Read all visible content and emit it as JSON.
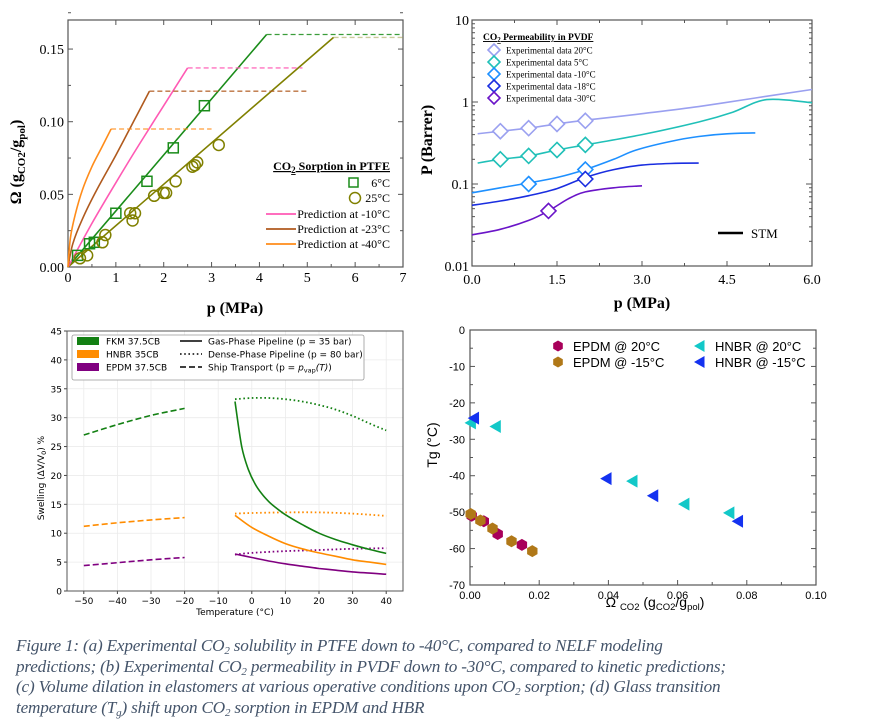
{
  "caption": {
    "line1_a": "Figure 1: (a) Experimental CO",
    "line1_b": " solubility in PTFE down to -40°C, compared to NELF modeling",
    "line2_a": "predictions; (b) Experimental CO",
    "line2_b": " permeability in PVDF down to -30°C, compared to kinetic predictions;",
    "line3_a": "(c) Volume dilation in elastomers at various operative conditions upon CO",
    "line3_b": " sorption; (d) Glass transition",
    "line4_a": "temperature (T",
    "line4_b": ") shift upon CO",
    "line4_c": " sorption in EPDM and HBR",
    "sub2": "2",
    "subg": "g"
  },
  "chart_data": [
    {
      "id": "a",
      "type": "line",
      "title": "CO2 Sorption in PTFE",
      "xlabel": "p (MPa)",
      "ylabel": "Ω (gCO2/gpol)",
      "xlim": [
        0,
        7
      ],
      "ylim": [
        0,
        0.17
      ],
      "xticks": [
        0,
        1,
        2,
        3,
        4,
        5,
        6,
        7
      ],
      "yticks": [
        0.0,
        0.05,
        0.1,
        0.15
      ],
      "ytick_labels": [
        "0.00",
        "0.05",
        "0.10",
        "0.15"
      ],
      "legend_placement": "bottom-right",
      "legend_title": "CO2 Sorption in PTFE",
      "scatter": [
        {
          "name": "6°C",
          "marker": "square",
          "color": "#1a8c1a",
          "x": [
            0.2,
            0.45,
            0.55,
            1.0,
            1.65,
            2.2,
            2.85
          ],
          "y": [
            0.008,
            0.016,
            0.017,
            0.037,
            0.059,
            0.082,
            0.111
          ]
        },
        {
          "name": "25°C",
          "marker": "circle",
          "color": "#808000",
          "x": [
            0.25,
            0.4,
            0.72,
            0.78,
            1.3,
            1.35,
            1.4,
            1.8,
            2.0,
            2.05,
            2.25,
            2.6,
            2.65,
            2.7,
            3.15
          ],
          "y": [
            0.006,
            0.008,
            0.017,
            0.022,
            0.037,
            0.032,
            0.037,
            0.049,
            0.051,
            0.051,
            0.059,
            0.069,
            0.07,
            0.072,
            0.084
          ]
        }
      ],
      "series": [
        {
          "name": "6°C fit",
          "color": "#1a8c1a",
          "x": [
            0,
            4.15
          ],
          "y": [
            0,
            0.16
          ],
          "plateau_to": 7
        },
        {
          "name": "25°C fit",
          "color": "#808000",
          "x": [
            0,
            5.55
          ],
          "y": [
            0,
            0.158
          ],
          "plateau_to": 7,
          "plateau_color": "#c2c28a"
        },
        {
          "name": "Prediction at -10°C",
          "color": "#ff5ab4",
          "x": [
            0,
            0.5,
            1.0,
            1.5,
            2.0,
            2.5
          ],
          "y": [
            0,
            0.03,
            0.058,
            0.085,
            0.111,
            0.137
          ],
          "plateau_to": 4.9
        },
        {
          "name": "Prediction at -23°C",
          "color": "#b05a1e",
          "x": [
            0,
            0.1,
            0.3,
            0.6,
            1.0,
            1.4,
            1.7
          ],
          "y": [
            0,
            0.016,
            0.033,
            0.053,
            0.077,
            0.102,
            0.121
          ],
          "plateau_to": 5.0
        },
        {
          "name": "Prediction at -40°C",
          "color": "#ff8c1a",
          "x": [
            0,
            0.05,
            0.15,
            0.3,
            0.5,
            0.7,
            0.9
          ],
          "y": [
            0,
            0.02,
            0.036,
            0.053,
            0.069,
            0.082,
            0.095
          ],
          "plateau_to": 3.0
        }
      ]
    },
    {
      "id": "b",
      "type": "line",
      "title": "CO2 Permeability in PVDF",
      "xlabel": "p (MPa)",
      "ylabel": "P (Barrer)",
      "xscale": "linear",
      "yscale": "log",
      "xlim": [
        0,
        6
      ],
      "ylim": [
        0.01,
        10
      ],
      "xticks": [
        0.0,
        1.5,
        3.0,
        4.5,
        6.0
      ],
      "xtick_labels": [
        "0.0",
        "1.5",
        "3.0",
        "4.5",
        "6.0"
      ],
      "yticks": [
        0.01,
        0.1,
        1,
        10
      ],
      "ytick_labels": [
        "0.01",
        "0.1",
        "1",
        "10"
      ],
      "legend_placement": "top-left",
      "legend_title": "CO2 Permeability in PVDF",
      "model_label": "STM",
      "series": [
        {
          "name": "Experimental data 20°C",
          "color": "#9aa0f0",
          "points_x": [
            0.5,
            1.0,
            1.5,
            2.0
          ],
          "points_y": [
            0.44,
            0.48,
            0.54,
            0.59
          ],
          "x": [
            0.1,
            0.5,
            1.0,
            1.5,
            2.0,
            3.0,
            4.0,
            5.0,
            6.0
          ],
          "y": [
            0.41,
            0.44,
            0.48,
            0.54,
            0.6,
            0.72,
            0.88,
            1.12,
            1.42
          ]
        },
        {
          "name": "Experimental data 5°C",
          "color": "#20c0b8",
          "points_x": [
            0.5,
            1.0,
            1.5,
            2.0
          ],
          "points_y": [
            0.2,
            0.22,
            0.26,
            0.3
          ],
          "x": [
            0.1,
            0.5,
            1.0,
            1.5,
            2.0,
            3.0,
            4.0,
            4.6,
            5.2,
            6.0
          ],
          "y": [
            0.18,
            0.2,
            0.22,
            0.26,
            0.3,
            0.4,
            0.57,
            0.75,
            1.07,
            0.98
          ]
        },
        {
          "name": "Experimental data -10°C",
          "color": "#1e90ff",
          "points_x": [
            1.0,
            2.0
          ],
          "points_y": [
            0.1,
            0.15
          ],
          "x": [
            0.0,
            0.5,
            1.0,
            1.5,
            2.0,
            2.5,
            2.9,
            3.5,
            4.0,
            4.5,
            5.0
          ],
          "y": [
            0.078,
            0.09,
            0.103,
            0.12,
            0.15,
            0.2,
            0.26,
            0.33,
            0.38,
            0.41,
            0.42
          ]
        },
        {
          "name": "Experimental data -18°C",
          "color": "#1a2ee0",
          "points_x": [
            2.0
          ],
          "points_y": [
            0.115
          ],
          "x": [
            0.0,
            0.5,
            1.0,
            1.5,
            2.0,
            2.5,
            3.0,
            3.5,
            4.0
          ],
          "y": [
            0.055,
            0.062,
            0.072,
            0.088,
            0.12,
            0.15,
            0.17,
            0.178,
            0.18
          ]
        },
        {
          "name": "Experimental data -30°C",
          "color": "#6a14c8",
          "points_x": [
            1.35
          ],
          "points_y": [
            0.047
          ],
          "x": [
            0.0,
            0.5,
            1.0,
            1.35,
            1.7,
            2.0,
            2.5,
            3.0
          ],
          "y": [
            0.024,
            0.028,
            0.036,
            0.047,
            0.066,
            0.08,
            0.09,
            0.095
          ]
        }
      ]
    },
    {
      "id": "c",
      "type": "line",
      "xlabel": "Temperature (°C)",
      "ylabel": "Swelling (ΔV/V0) %",
      "xlim": [
        -55,
        45
      ],
      "ylim": [
        0,
        45
      ],
      "grid": true,
      "xticks": [
        -50,
        -40,
        -30,
        -20,
        -10,
        0,
        10,
        20,
        30,
        40
      ],
      "xtick_labels": [
        "−50",
        "−40",
        "−30",
        "−20",
        "−10",
        "0",
        "10",
        "20",
        "30",
        "40"
      ],
      "yticks": [
        0,
        5,
        10,
        15,
        20,
        25,
        30,
        35,
        40,
        45
      ],
      "legend_placement": "top",
      "legend_materials": [
        {
          "name": "FKM 37.5CB",
          "color": "#138013"
        },
        {
          "name": "HNBR 35CB",
          "color": "#ff8c00"
        },
        {
          "name": "EPDM 37.5CB",
          "color": "#800080"
        }
      ],
      "legend_styles": [
        {
          "name": "Gas-Phase Pipeline (p = 35 bar)",
          "dash": "solid"
        },
        {
          "name": "Dense-Phase Pipeline (p = 80 bar)",
          "dash": "dotted"
        },
        {
          "name_a": "Ship Transport (p = ",
          "name_b": "p",
          "name_c": "vap",
          "name_d": "(T)",
          "name_e": ")",
          "dash": "dashed"
        }
      ],
      "series": [
        {
          "material": "FKM 37.5CB",
          "condition": "Ship Transport",
          "dash": "dashed",
          "color": "#138013",
          "x": [
            -50,
            -40,
            -30,
            -20
          ],
          "y": [
            27.0,
            28.8,
            30.4,
            31.6
          ]
        },
        {
          "material": "HNBR 35CB",
          "condition": "Ship Transport",
          "dash": "dashed",
          "color": "#ff8c00",
          "x": [
            -50,
            -40,
            -30,
            -20
          ],
          "y": [
            11.2,
            11.8,
            12.3,
            12.7
          ]
        },
        {
          "material": "EPDM 37.5CB",
          "condition": "Ship Transport",
          "dash": "dashed",
          "color": "#800080",
          "x": [
            -50,
            -40,
            -30,
            -20
          ],
          "y": [
            4.4,
            4.9,
            5.4,
            5.8
          ]
        },
        {
          "material": "FKM 37.5CB",
          "condition": "Dense-Phase Pipeline",
          "dash": "dotted",
          "color": "#138013",
          "x": [
            -5,
            0,
            5,
            10,
            15,
            20,
            25,
            30,
            35,
            40
          ],
          "y": [
            33.2,
            33.4,
            33.4,
            33.2,
            32.8,
            32.2,
            31.4,
            30.3,
            29.0,
            27.8
          ]
        },
        {
          "material": "HNBR 35CB",
          "condition": "Dense-Phase Pipeline",
          "dash": "dotted",
          "color": "#ff8c00",
          "x": [
            -5,
            0,
            10,
            20,
            30,
            40
          ],
          "y": [
            13.4,
            13.5,
            13.6,
            13.6,
            13.4,
            13.0
          ]
        },
        {
          "material": "EPDM 37.5CB",
          "condition": "Dense-Phase Pipeline",
          "dash": "dotted",
          "color": "#800080",
          "x": [
            -5,
            0,
            10,
            20,
            30,
            40
          ],
          "y": [
            6.3,
            6.6,
            6.9,
            7.1,
            7.3,
            7.4
          ]
        },
        {
          "material": "FKM 37.5CB",
          "condition": "Gas-Phase Pipeline",
          "dash": "solid",
          "color": "#138013",
          "x": [
            -5,
            -3,
            -1,
            1,
            3,
            5,
            7,
            10,
            15,
            20,
            25,
            30,
            35,
            40
          ],
          "y": [
            32.8,
            25.0,
            21.0,
            18.5,
            16.8,
            15.5,
            14.5,
            13.2,
            11.5,
            10.0,
            8.9,
            8.0,
            7.2,
            6.5
          ]
        },
        {
          "material": "HNBR 35CB",
          "condition": "Gas-Phase Pipeline",
          "dash": "solid",
          "color": "#ff8c00",
          "x": [
            -5,
            0,
            5,
            10,
            15,
            20,
            25,
            30,
            35,
            40
          ],
          "y": [
            13.1,
            11.0,
            9.5,
            8.2,
            7.3,
            6.6,
            6.0,
            5.4,
            5.0,
            4.6
          ]
        },
        {
          "material": "EPDM 37.5CB",
          "condition": "Gas-Phase Pipeline",
          "dash": "solid",
          "color": "#800080",
          "x": [
            -5,
            0,
            5,
            10,
            15,
            20,
            25,
            30,
            35,
            40
          ],
          "y": [
            6.4,
            5.8,
            5.2,
            4.7,
            4.3,
            3.9,
            3.6,
            3.3,
            3.1,
            2.9
          ]
        }
      ]
    },
    {
      "id": "d",
      "type": "scatter",
      "xlabel": "Ω CO2 (gCO2/gpol)",
      "ylabel": "Tg (°C)",
      "xlim": [
        0,
        0.1
      ],
      "ylim": [
        -70,
        0
      ],
      "xticks": [
        0.0,
        0.02,
        0.04,
        0.06,
        0.08,
        0.1
      ],
      "xtick_labels": [
        "0.00",
        "0.02",
        "0.04",
        "0.06",
        "0.08",
        "0.10"
      ],
      "yticks": [
        0,
        -10,
        -20,
        -30,
        -40,
        -50,
        -60,
        -70
      ],
      "ytick_labels": [
        "0",
        "-10",
        "-20",
        "-30",
        "-40",
        "-50",
        "-60",
        "-70"
      ],
      "legend_placement": "top-right",
      "series": [
        {
          "name": "EPDM @ 20°C",
          "marker": "hexagon",
          "color": "#a8005a",
          "x": [
            0.0005,
            0.004,
            0.008,
            0.015
          ],
          "y": [
            -51,
            -52.5,
            -56,
            -59
          ]
        },
        {
          "name": "EPDM @ -15°C",
          "marker": "hexagon",
          "color": "#b07818",
          "x": [
            0.0002,
            0.003,
            0.0065,
            0.012,
            0.018
          ],
          "y": [
            -50.5,
            -52.3,
            -54.5,
            -58,
            -60.7
          ]
        },
        {
          "name": "HNBR @ 20°C",
          "marker": "triangle-left",
          "color": "#12c8c8",
          "x": [
            0.0003,
            0.0075,
            0.047,
            0.062,
            0.075
          ],
          "y": [
            -25.5,
            -26.5,
            -41.5,
            -47.8,
            -50.2
          ]
        },
        {
          "name": "HNBR @ -15°C",
          "marker": "triangle-left",
          "color": "#1432f0",
          "x": [
            0.0012,
            0.0395,
            0.053,
            0.0775
          ],
          "y": [
            -24.2,
            -40.8,
            -45.5,
            -52.5
          ]
        }
      ]
    }
  ]
}
